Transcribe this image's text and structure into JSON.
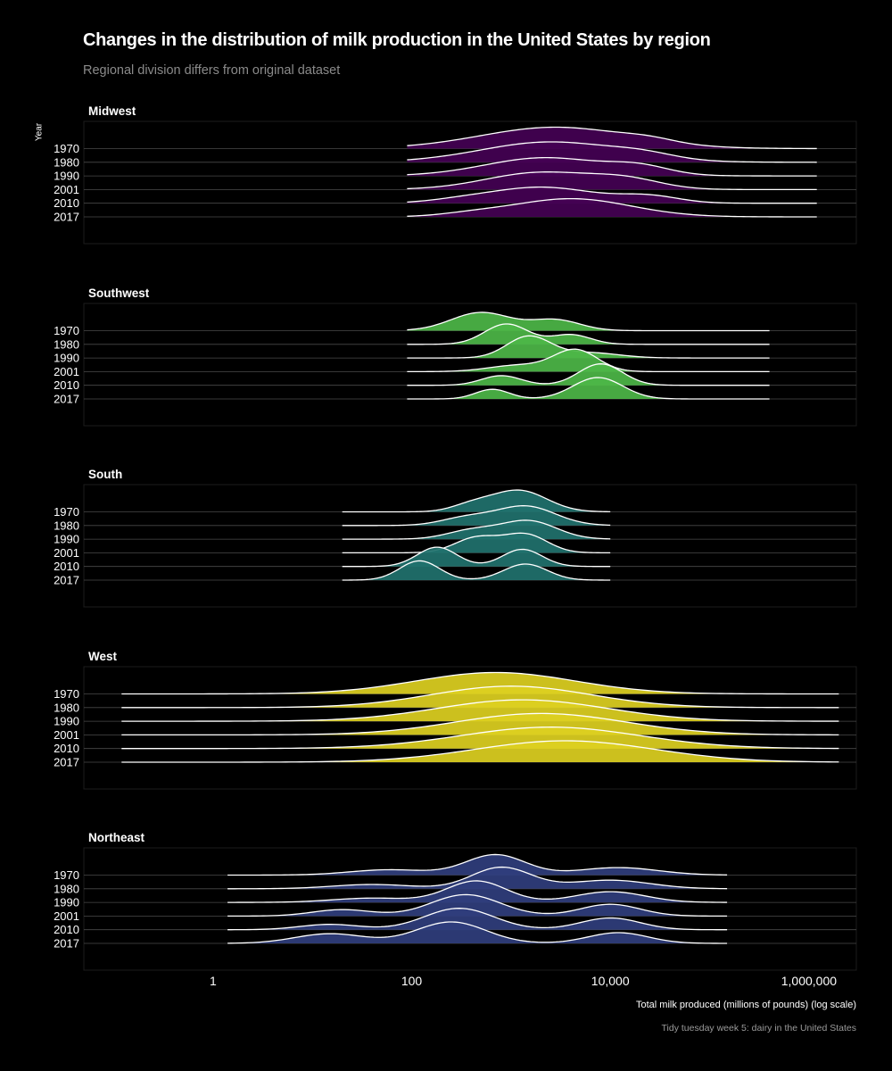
{
  "chart_data": {
    "type": "area",
    "title": "Changes in the distribution of milk production in the United States by region",
    "subtitle": "Regional division differs from original dataset",
    "ylabel": "Year",
    "xlabel": "Total milk produced (millions of pounds) (log scale)",
    "caption": "Tidy tuesday week 5: dairy in the United States",
    "x_scale": "log10",
    "xlim": [
      0.05,
      3000000
    ],
    "x_ticks": [
      1,
      100,
      10000,
      1000000
    ],
    "x_tick_labels": [
      "1",
      "100",
      "10,000",
      "1,000,000"
    ],
    "years": [
      "1970",
      "1980",
      "1990",
      "2001",
      "2010",
      "2017"
    ],
    "grid": "horizontal lines at each year baseline",
    "panels": [
      {
        "name": "Midwest",
        "color": "#440154",
        "x_range": [
          90,
          1200000
        ],
        "series": [
          {
            "year": "1970",
            "peaks": [
              [
                2800,
                0.75,
                1.0
              ],
              [
                25000,
                0.25,
                0.15
              ]
            ]
          },
          {
            "year": "1980",
            "peaks": [
              [
                2500,
                0.7,
                0.95
              ],
              [
                22000,
                0.3,
                0.2
              ]
            ]
          },
          {
            "year": "1990",
            "peaks": [
              [
                2200,
                0.6,
                0.85
              ],
              [
                20000,
                0.3,
                0.35
              ]
            ]
          },
          {
            "year": "2001",
            "peaks": [
              [
                2000,
                0.55,
                0.8
              ],
              [
                15000,
                0.35,
                0.4
              ]
            ]
          },
          {
            "year": "2010",
            "peaks": [
              [
                2000,
                0.55,
                0.75
              ],
              [
                25000,
                0.3,
                0.3
              ],
              [
                300,
                0.3,
                0.08
              ]
            ]
          },
          {
            "year": "2017",
            "peaks": [
              [
                4000,
                0.6,
                0.85
              ],
              [
                400,
                0.3,
                0.1
              ]
            ]
          }
        ]
      },
      {
        "name": "Southwest",
        "color": "#4db748",
        "x_range": [
          90,
          400000
        ],
        "series": [
          {
            "year": "1970",
            "peaks": [
              [
                500,
                0.3,
                0.85
              ],
              [
                2800,
                0.25,
                0.5
              ]
            ]
          },
          {
            "year": "1980",
            "peaks": [
              [
                900,
                0.22,
                0.95
              ],
              [
                4000,
                0.2,
                0.45
              ]
            ]
          },
          {
            "year": "1990",
            "peaks": [
              [
                1500,
                0.22,
                1.0
              ],
              [
                6000,
                0.3,
                0.25
              ]
            ]
          },
          {
            "year": "2001",
            "peaks": [
              [
                4500,
                0.22,
                1.0
              ],
              [
                1200,
                0.3,
                0.3
              ]
            ]
          },
          {
            "year": "2010",
            "peaks": [
              [
                8000,
                0.22,
                1.0
              ],
              [
                800,
                0.2,
                0.45
              ]
            ]
          },
          {
            "year": "2017",
            "peaks": [
              [
                7500,
                0.25,
                1.0
              ],
              [
                650,
                0.17,
                0.45
              ]
            ]
          }
        ]
      },
      {
        "name": "South",
        "color": "#21726e",
        "x_range": [
          20,
          10000
        ],
        "series": [
          {
            "year": "1970",
            "peaks": [
              [
                1200,
                0.28,
                1.0
              ],
              [
                400,
                0.2,
                0.3
              ]
            ]
          },
          {
            "year": "1980",
            "peaks": [
              [
                1400,
                0.3,
                0.9
              ],
              [
                350,
                0.25,
                0.35
              ]
            ]
          },
          {
            "year": "1990",
            "peaks": [
              [
                1500,
                0.28,
                0.85
              ],
              [
                400,
                0.25,
                0.4
              ]
            ]
          },
          {
            "year": "2001",
            "peaks": [
              [
                1400,
                0.22,
                0.85
              ],
              [
                450,
                0.22,
                0.7
              ]
            ]
          },
          {
            "year": "2010",
            "peaks": [
              [
                1300,
                0.2,
                0.8
              ],
              [
                180,
                0.2,
                0.9
              ]
            ]
          },
          {
            "year": "2017",
            "peaks": [
              [
                1400,
                0.22,
                0.75
              ],
              [
                120,
                0.2,
                0.9
              ]
            ]
          }
        ]
      },
      {
        "name": "West",
        "color": "#ddd021",
        "x_range": [
          0.12,
          2000000
        ],
        "series": [
          {
            "year": "1970",
            "peaks": [
              [
                700,
                0.8,
                1.0
              ]
            ]
          },
          {
            "year": "1980",
            "peaks": [
              [
                1000,
                0.8,
                1.0
              ]
            ]
          },
          {
            "year": "1990",
            "peaks": [
              [
                1300,
                0.85,
                1.0
              ]
            ]
          },
          {
            "year": "2001",
            "peaks": [
              [
                2000,
                0.85,
                1.0
              ]
            ]
          },
          {
            "year": "2010",
            "peaks": [
              [
                2500,
                0.9,
                1.0
              ]
            ]
          },
          {
            "year": "2017",
            "peaks": [
              [
                3500,
                0.9,
                1.0
              ]
            ]
          }
        ]
      },
      {
        "name": "Northeast",
        "color": "#303e7d",
        "x_range": [
          1.4,
          150000
        ],
        "series": [
          {
            "year": "1970",
            "peaks": [
              [
                700,
                0.3,
                0.95
              ],
              [
                12000,
                0.4,
                0.35
              ],
              [
                60,
                0.4,
                0.25
              ]
            ]
          },
          {
            "year": "1980",
            "peaks": [
              [
                800,
                0.3,
                1.0
              ],
              [
                10000,
                0.4,
                0.4
              ],
              [
                40,
                0.4,
                0.2
              ]
            ]
          },
          {
            "year": "1990",
            "peaks": [
              [
                450,
                0.3,
                1.0
              ],
              [
                10000,
                0.35,
                0.5
              ],
              [
                40,
                0.4,
                0.2
              ]
            ]
          },
          {
            "year": "2001",
            "peaks": [
              [
                350,
                0.35,
                1.0
              ],
              [
                10000,
                0.3,
                0.55
              ],
              [
                20,
                0.3,
                0.3
              ]
            ]
          },
          {
            "year": "2010",
            "peaks": [
              [
                300,
                0.35,
                1.0
              ],
              [
                10000,
                0.3,
                0.55
              ],
              [
                15,
                0.3,
                0.25
              ]
            ]
          },
          {
            "year": "2017",
            "peaks": [
              [
                250,
                0.35,
                1.0
              ],
              [
                12000,
                0.3,
                0.5
              ],
              [
                15,
                0.35,
                0.45
              ]
            ]
          }
        ]
      }
    ]
  }
}
